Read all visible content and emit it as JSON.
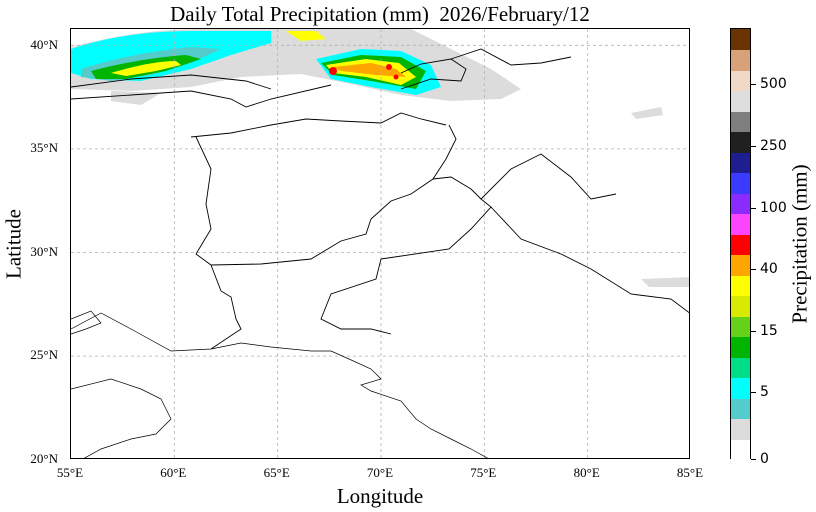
{
  "title": "Daily Total Precipitation (mm)  2026/February/12",
  "xlabel": "Longitude",
  "ylabel": "Latitude",
  "colorbar_label": "Precipitation (mm)",
  "x_ticks": [
    "55°E",
    "60°E",
    "65°E",
    "70°E",
    "75°E",
    "80°E",
    "85°E"
  ],
  "y_ticks": [
    "20°N",
    "25°N",
    "30°N",
    "35°N",
    "40°N"
  ],
  "colorbar_ticks": [
    "0",
    "5",
    "15",
    "40",
    "100",
    "250",
    "500"
  ],
  "colorbar_colors": [
    "#ffffff",
    "#dcdcdc",
    "#55cccc",
    "#00ffff",
    "#00dd88",
    "#00b400",
    "#66d11a",
    "#d8ea00",
    "#ffff00",
    "#ffa500",
    "#ff0000",
    "#ff44ff",
    "#8b2bff",
    "#3b3bff",
    "#1e1e90",
    "#202020",
    "#7f7f7f",
    "#dddddd",
    "#f1d9c7",
    "#d9a177",
    "#6b3300"
  ],
  "chart_data": {
    "type": "heatmap",
    "title": "Daily Total Precipitation (mm)  2026/February/12",
    "xlabel": "Longitude",
    "ylabel": "Latitude",
    "xlim": [
      55,
      85
    ],
    "ylim": [
      20,
      40.8
    ],
    "colorbar": {
      "label": "Precipitation (mm)",
      "tick_values": [
        0,
        5,
        15,
        40,
        100,
        250,
        500
      ]
    },
    "grid": true,
    "regions": [
      {
        "lon": [
          55,
          70
        ],
        "lat": [
          37.8,
          40.8
        ],
        "peak_mm": 15
      },
      {
        "lon": [
          67.2,
          72.5
        ],
        "lat": [
          37.8,
          40.0
        ],
        "peak_mm": 40
      }
    ]
  }
}
